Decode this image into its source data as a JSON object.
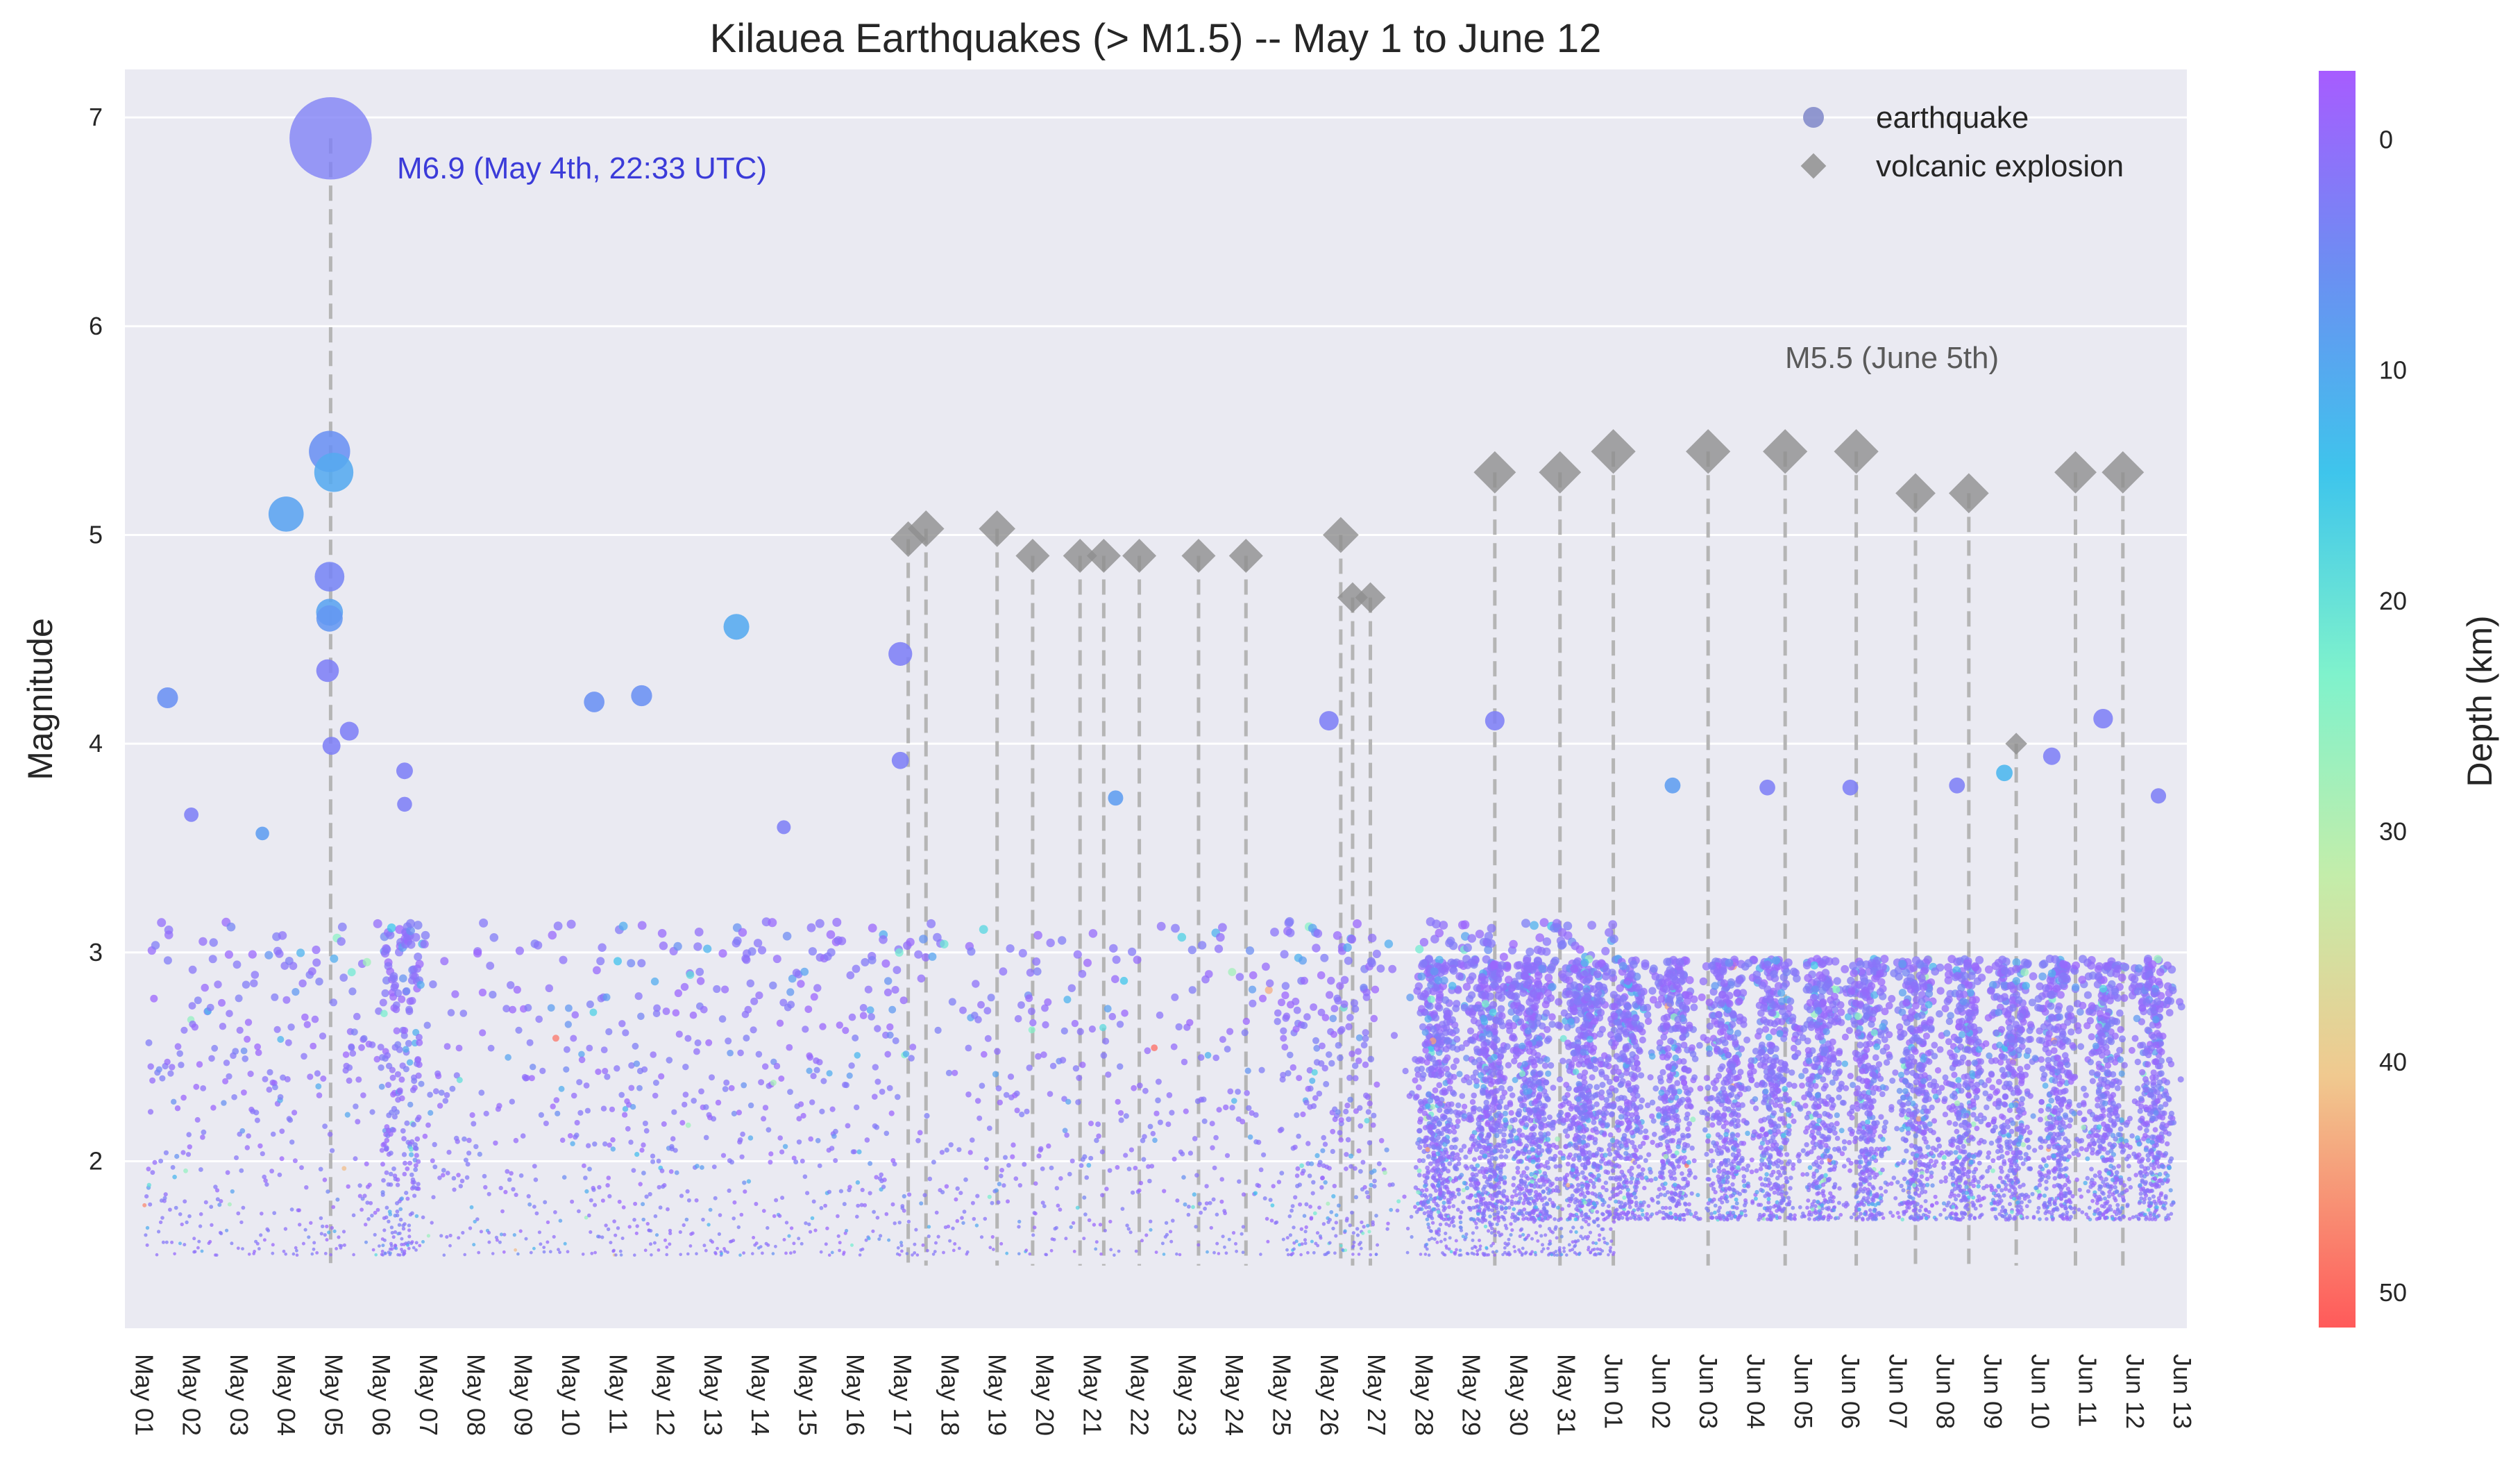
{
  "chart_data": {
    "type": "scatter",
    "title": "Kilauea Earthquakes (> M1.5) -- May 1 to June 12",
    "ylabel": "Magnitude",
    "xlabel": "",
    "ylim": [
      1.2,
      7.23
    ],
    "yticks": [
      2,
      3,
      4,
      5,
      6,
      7
    ],
    "x_range_days": [
      -0.4,
      43.1
    ],
    "xtick_labels": [
      "May 01",
      "May 02",
      "May 03",
      "May 04",
      "May 05",
      "May 06",
      "May 07",
      "May 08",
      "May 09",
      "May 10",
      "May 11",
      "May 12",
      "May 13",
      "May 14",
      "May 15",
      "May 16",
      "May 17",
      "May 18",
      "May 19",
      "May 20",
      "May 21",
      "May 22",
      "May 23",
      "May 24",
      "May 25",
      "May 26",
      "May 27",
      "May 28",
      "May 29",
      "May 30",
      "May 31",
      "Jun 01",
      "Jun 02",
      "Jun 03",
      "Jun 04",
      "Jun 05",
      "Jun 06",
      "Jun 07",
      "Jun 08",
      "Jun 09",
      "Jun 10",
      "Jun 11",
      "Jun 12",
      "Jun 13"
    ],
    "grid": true,
    "legend_position": "top-right",
    "legend": [
      "earthquake",
      "volcanic explosion"
    ],
    "colorbar": {
      "label": "Depth (km)",
      "ticks": [
        0,
        10,
        20,
        30,
        40,
        50
      ],
      "range": [
        -3,
        51.5
      ],
      "inverted": true,
      "colormap": "rainbow"
    },
    "notable_earthquakes": [
      {
        "date": "May 04 22:33",
        "mag": 6.9,
        "depth": 3
      },
      {
        "date": "May 04 22:00",
        "mag": 5.4,
        "depth": 6
      },
      {
        "date": "May 05 00:10",
        "mag": 5.3,
        "depth": 10
      },
      {
        "date": "May 04 00:00",
        "mag": 5.1,
        "depth": 9
      },
      {
        "date": "May 04 22:00",
        "mag": 4.8,
        "depth": 4
      },
      {
        "date": "May 04 22:00",
        "mag": 4.63,
        "depth": 9
      },
      {
        "date": "May 04 22:00",
        "mag": 4.6,
        "depth": 7
      },
      {
        "date": "May 13 12:00",
        "mag": 4.56,
        "depth": 10
      },
      {
        "date": "May 16 23:00",
        "mag": 4.43,
        "depth": 3
      },
      {
        "date": "May 04 21:00",
        "mag": 4.35,
        "depth": 3
      },
      {
        "date": "May 11 12:00",
        "mag": 4.23,
        "depth": 6
      },
      {
        "date": "May 01 12:00",
        "mag": 4.22,
        "depth": 6
      },
      {
        "date": "May 10 12:00",
        "mag": 4.2,
        "depth": 6
      },
      {
        "date": "Jun 11 08:00",
        "mag": 4.12,
        "depth": 3
      },
      {
        "date": "May 26 00:00",
        "mag": 4.11,
        "depth": 3
      },
      {
        "date": "May 29 12:00",
        "mag": 4.11,
        "depth": 3
      },
      {
        "date": "May 05 08:00",
        "mag": 4.06,
        "depth": 3
      },
      {
        "date": "May 04 23:00",
        "mag": 3.99,
        "depth": 3
      },
      {
        "date": "Jun 10 06:00",
        "mag": 3.94,
        "depth": 3
      },
      {
        "date": "May 16 23:00",
        "mag": 3.92,
        "depth": 3
      },
      {
        "date": "May 06 12:00",
        "mag": 3.87,
        "depth": 3
      },
      {
        "date": "Jun 09 06:00",
        "mag": 3.86,
        "depth": 12
      },
      {
        "date": "Jun 02 06:00",
        "mag": 3.8,
        "depth": 8
      },
      {
        "date": "Jun 04 06:00",
        "mag": 3.79,
        "depth": 3
      },
      {
        "date": "Jun 08 06:00",
        "mag": 3.8,
        "depth": 3
      },
      {
        "date": "Jun 06 00:00",
        "mag": 3.79,
        "depth": 3
      },
      {
        "date": "May 21 12:00",
        "mag": 3.74,
        "depth": 8
      },
      {
        "date": "May 06 12:00",
        "mag": 3.71,
        "depth": 3
      },
      {
        "date": "May 02 00:00",
        "mag": 3.66,
        "depth": 3
      },
      {
        "date": "Jun 12 12:00",
        "mag": 3.75,
        "depth": 3
      },
      {
        "date": "May 03 12:00",
        "mag": 3.57,
        "depth": 8
      },
      {
        "date": "May 14 12:00",
        "mag": 3.6,
        "depth": 3
      }
    ],
    "volcanic_explosions": [
      {
        "date": "May 17 03:00",
        "mag": 4.98
      },
      {
        "date": "May 17 12:00",
        "mag": 5.03
      },
      {
        "date": "May 19 00:00",
        "mag": 5.03
      },
      {
        "date": "May 19 18:00",
        "mag": 4.9
      },
      {
        "date": "May 20 18:00",
        "mag": 4.9
      },
      {
        "date": "May 21 06:00",
        "mag": 4.9
      },
      {
        "date": "May 22 00:00",
        "mag": 4.9
      },
      {
        "date": "May 23 06:00",
        "mag": 4.9
      },
      {
        "date": "May 24 06:00",
        "mag": 4.9
      },
      {
        "date": "May 26 06:00",
        "mag": 5.0
      },
      {
        "date": "May 26 12:00",
        "mag": 4.7
      },
      {
        "date": "May 26 21:00",
        "mag": 4.7
      },
      {
        "date": "May 29 12:00",
        "mag": 5.3
      },
      {
        "date": "May 30 21:00",
        "mag": 5.3
      },
      {
        "date": "Jun 01 00:00",
        "mag": 5.4
      },
      {
        "date": "Jun 03 00:00",
        "mag": 5.4
      },
      {
        "date": "Jun 04 15:00",
        "mag": 5.4
      },
      {
        "date": "Jun 06 03:00",
        "mag": 5.4
      },
      {
        "date": "Jun 07 09:00",
        "mag": 5.2
      },
      {
        "date": "Jun 08 12:00",
        "mag": 5.2
      },
      {
        "date": "Jun 09 12:00",
        "mag": 4.0
      },
      {
        "date": "Jun 10 18:00",
        "mag": 5.3
      },
      {
        "date": "Jun 11 18:00",
        "mag": 5.3
      }
    ],
    "annotations": [
      {
        "text": "M6.9 (May 4th, 22:33 UTC)",
        "color": "#3b3bd9"
      },
      {
        "text": "M5.5 (June 5th)",
        "color": "#5a5a5a"
      }
    ]
  }
}
